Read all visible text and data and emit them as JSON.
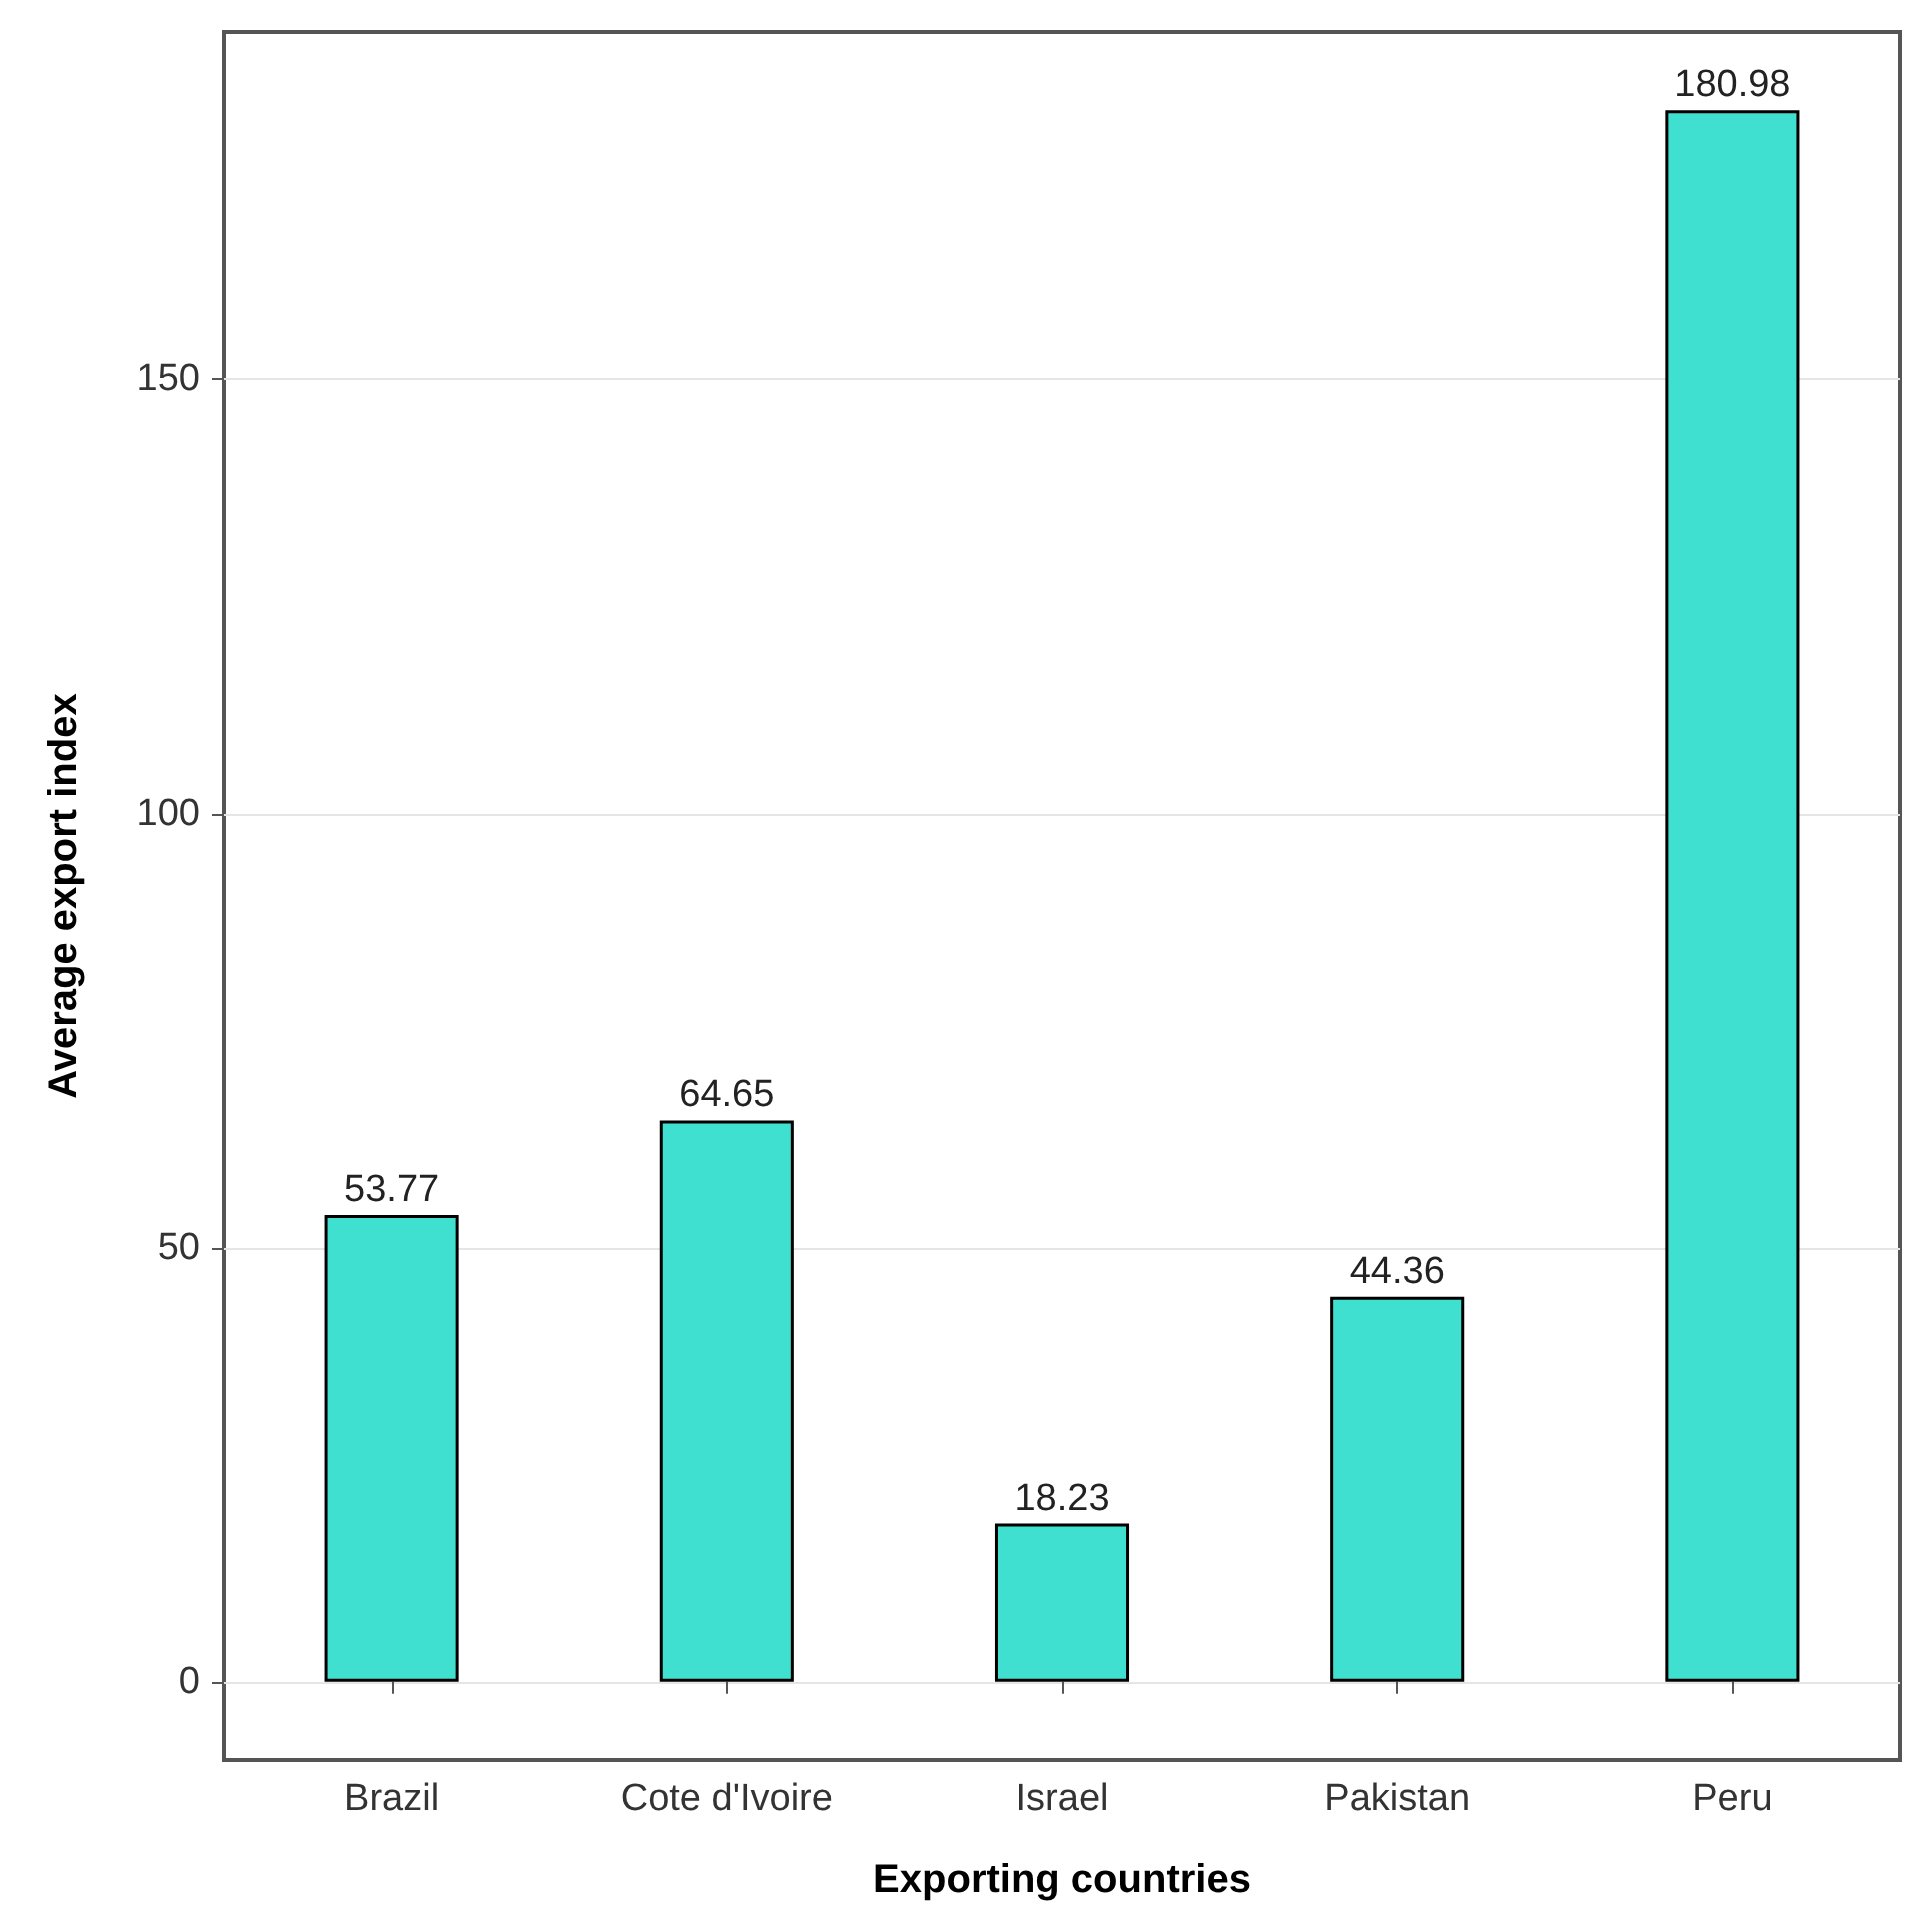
{
  "chart_data": {
    "type": "bar",
    "xlabel": "Exporting countries",
    "ylabel": "Average export index",
    "categories": [
      "Brazil",
      "Cote d'Ivoire",
      "Israel",
      "Pakistan",
      "Peru"
    ],
    "values": [
      53.77,
      64.65,
      18.23,
      44.36,
      180.98
    ],
    "color": "#40e0d0",
    "ylim": [
      -9,
      190
    ],
    "yticks": [
      0,
      50,
      100,
      150
    ],
    "grid": "y",
    "data_labels": true
  }
}
